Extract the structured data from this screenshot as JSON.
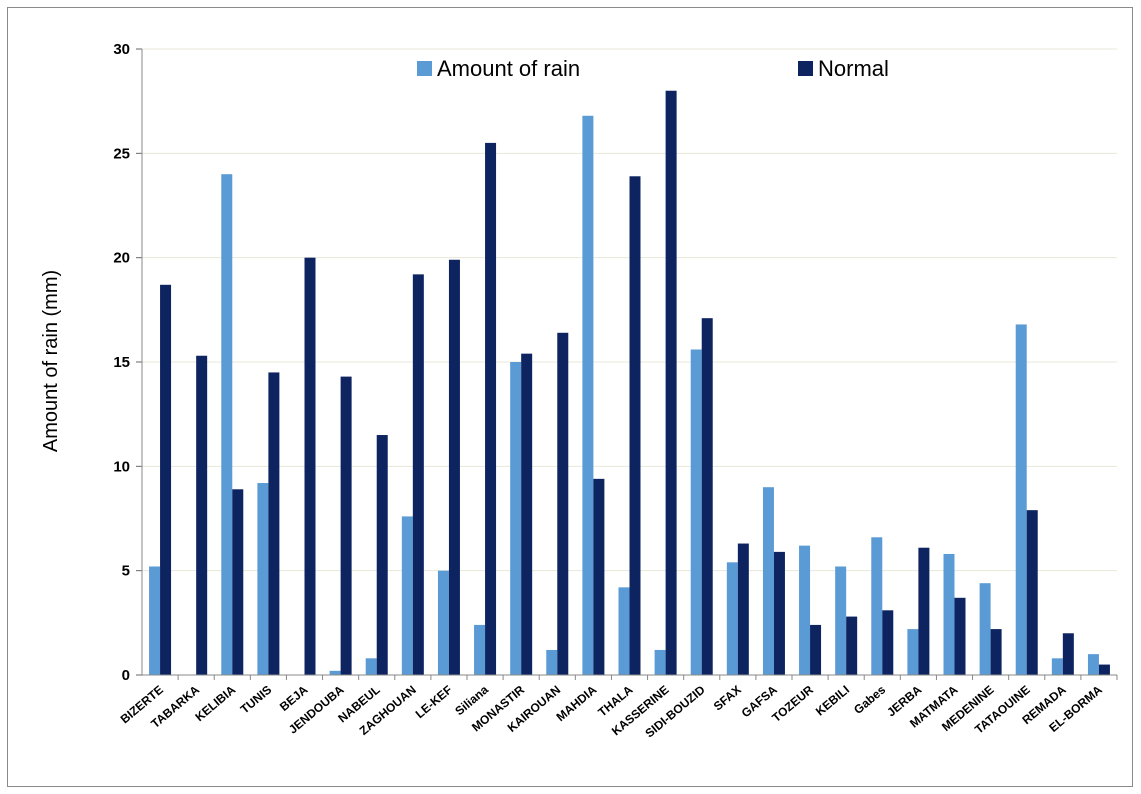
{
  "chart_data": {
    "type": "bar",
    "title": "",
    "xlabel": "",
    "ylabel": "Amount of rain (mm)",
    "ylim": [
      0,
      30
    ],
    "yticks": [
      0,
      5,
      10,
      15,
      20,
      25,
      30
    ],
    "grid": true,
    "legend_position": "top",
    "categories": [
      "BIZERTE",
      "TABARKA",
      "KELIBIA",
      "TUNIS",
      "BEJA",
      "JENDOUBA",
      "NABEUL",
      "ZAGHOUAN",
      "LE-KEF",
      "Siliana",
      "MONASTIR",
      "KAIROUAN",
      "MAHDIA",
      "THALA",
      "KASSERINE",
      "SIDI-BOUZID",
      "SFAX",
      "GAFSA",
      "TOZEUR",
      "KEBILI",
      "Gabes",
      "JERBA",
      "MATMATA",
      "MEDENINE",
      "TATAOUINE",
      "REMADA",
      "EL-BORMA"
    ],
    "series": [
      {
        "name": "Amount of rain",
        "color": "#5B9BD5",
        "values": [
          5.2,
          0,
          24.0,
          9.2,
          0,
          0.2,
          0.8,
          7.6,
          5.0,
          2.4,
          15.0,
          1.2,
          26.8,
          4.2,
          1.2,
          15.6,
          5.4,
          9.0,
          6.2,
          5.2,
          6.6,
          2.2,
          5.8,
          4.4,
          16.8,
          0.8,
          1.0
        ]
      },
      {
        "name": "Normal",
        "color": "#0D2461",
        "values": [
          18.7,
          15.3,
          8.9,
          14.5,
          20.0,
          14.3,
          11.5,
          19.2,
          19.9,
          25.5,
          15.4,
          16.4,
          9.4,
          23.9,
          28.0,
          17.1,
          6.3,
          5.9,
          2.4,
          2.8,
          3.1,
          6.1,
          3.7,
          2.2,
          7.9,
          2.0,
          0.5
        ]
      }
    ]
  }
}
